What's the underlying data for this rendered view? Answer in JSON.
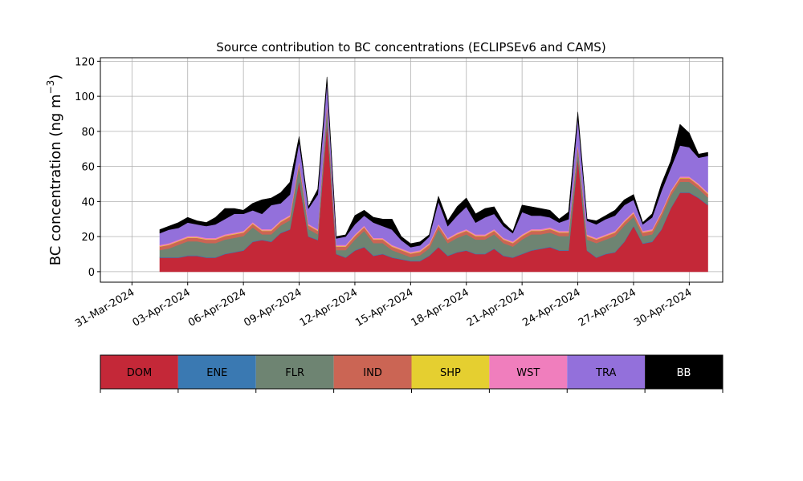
{
  "chart_data": {
    "type": "area",
    "stacked": true,
    "title": "Source contribution to BC concentrations (ECLIPSEv6 and CAMS)",
    "ylabel": "BC concentration (ng m",
    "ylabel_exponent": "−3",
    "ylabel_close": ")",
    "ylim": [
      -6,
      122
    ],
    "yticks": [
      0,
      20,
      40,
      60,
      80,
      100,
      120
    ],
    "xlim": [
      -1.7,
      31.8
    ],
    "xtick_positions": [
      0,
      3,
      6,
      9,
      12,
      15,
      18,
      21,
      24,
      27,
      30
    ],
    "xtick_labels": [
      "31-Mar-2024",
      "03-Apr-2024",
      "06-Apr-2024",
      "09-Apr-2024",
      "12-Apr-2024",
      "15-Apr-2024",
      "18-Apr-2024",
      "21-Apr-2024",
      "24-Apr-2024",
      "27-Apr-2024",
      "30-Apr-2024"
    ],
    "x_units": "days since 31-Mar-2024",
    "grid": true,
    "legend_placement": "bottom",
    "x": [
      1.5,
      2.0,
      2.5,
      3.0,
      3.5,
      4.0,
      4.5,
      5.0,
      5.5,
      6.0,
      6.5,
      7.0,
      7.5,
      8.0,
      8.5,
      9.0,
      9.5,
      10.0,
      10.5,
      11.0,
      11.5,
      12.0,
      12.5,
      13.0,
      13.5,
      14.0,
      14.5,
      15.0,
      15.5,
      16.0,
      16.5,
      17.0,
      17.5,
      18.0,
      18.5,
      19.0,
      19.5,
      20.0,
      20.5,
      21.0,
      21.5,
      22.0,
      22.5,
      23.0,
      23.5,
      24.0,
      24.5,
      25.0,
      25.5,
      26.0,
      26.5,
      27.0,
      27.5,
      28.0,
      28.5,
      29.0,
      29.5,
      30.0,
      30.5,
      31.0
    ],
    "series": [
      {
        "name": "DOM",
        "color": "#c42838",
        "values": [
          8,
          8,
          8,
          9,
          9,
          8,
          8,
          10,
          11,
          12,
          17,
          18,
          17,
          22,
          24,
          52,
          20,
          18,
          85,
          10,
          8,
          12,
          14,
          9,
          10,
          8,
          7,
          6,
          6,
          9,
          14,
          9,
          11,
          12,
          10,
          10,
          13,
          9,
          8,
          10,
          12,
          13,
          14,
          12,
          12,
          65,
          12,
          8,
          10,
          11,
          17,
          26,
          16,
          17,
          24,
          36,
          45,
          45,
          42,
          38
        ]
      },
      {
        "name": "ENE",
        "color": "#3a79b2",
        "values": [
          0.3,
          0.3,
          0.3,
          0.3,
          0.3,
          0.3,
          0.3,
          0.3,
          0.3,
          0.3,
          0.3,
          0.3,
          0.3,
          0.3,
          0.3,
          0.3,
          0.3,
          0.3,
          0.3,
          0.3,
          0.3,
          0.3,
          0.3,
          0.3,
          0.3,
          0.3,
          0.3,
          0.3,
          0.3,
          0.3,
          0.3,
          0.3,
          0.3,
          0.3,
          0.3,
          0.3,
          0.3,
          0.3,
          0.3,
          0.3,
          0.3,
          0.3,
          0.3,
          0.3,
          0.3,
          0.3,
          0.3,
          0.3,
          0.3,
          0.3,
          0.3,
          0.3,
          0.3,
          0.3,
          0.3,
          0.3,
          0.3,
          0.3,
          0.3,
          0.3
        ]
      },
      {
        "name": "FLR",
        "color": "#6e8472",
        "values": [
          4,
          5,
          7,
          8,
          8,
          8,
          8,
          8,
          8,
          8,
          8,
          3,
          4,
          4,
          5,
          8,
          4,
          3,
          8,
          2,
          4,
          6,
          9,
          7,
          6,
          4,
          3,
          2,
          3,
          4,
          10,
          7,
          8,
          9,
          8,
          8,
          8,
          7,
          6,
          8,
          9,
          8,
          8,
          8,
          8,
          5,
          6,
          8,
          8,
          9,
          9,
          5,
          4,
          4,
          7,
          7,
          6,
          6,
          5,
          4
        ]
      },
      {
        "name": "IND",
        "color": "#cb6554",
        "values": [
          2,
          2,
          2,
          2,
          2,
          2,
          2,
          2,
          2,
          2,
          2,
          2,
          2,
          2,
          2,
          2,
          2,
          2,
          2,
          2,
          2,
          2,
          2,
          2,
          2,
          2,
          2,
          2,
          2,
          2,
          2,
          2,
          2,
          2,
          2,
          2,
          2,
          2,
          2,
          2,
          2,
          2,
          2,
          2,
          2,
          2,
          2,
          2,
          2,
          2,
          2,
          2,
          2,
          2,
          2,
          2,
          2,
          2,
          2,
          2
        ]
      },
      {
        "name": "SHP",
        "color": "#e5cf30",
        "values": [
          0.3,
          0.3,
          0.3,
          0.3,
          0.3,
          0.3,
          0.3,
          0.3,
          0.3,
          0.3,
          0.3,
          0.3,
          0.3,
          0.3,
          0.3,
          0.3,
          0.3,
          0.3,
          0.3,
          0.3,
          0.3,
          0.3,
          0.3,
          0.3,
          0.3,
          0.3,
          0.3,
          0.3,
          0.3,
          0.3,
          0.3,
          0.3,
          0.3,
          0.3,
          0.3,
          0.3,
          0.3,
          0.3,
          0.3,
          0.3,
          0.3,
          0.3,
          0.3,
          0.3,
          0.3,
          0.3,
          0.3,
          0.3,
          0.3,
          0.3,
          0.3,
          0.3,
          0.3,
          0.3,
          0.3,
          0.3,
          0.3,
          0.3,
          0.3,
          0.3
        ]
      },
      {
        "name": "WST",
        "color": "#f07ebd",
        "values": [
          0.7,
          0.7,
          0.7,
          0.7,
          0.7,
          0.7,
          0.7,
          0.7,
          0.7,
          0.7,
          0.7,
          0.7,
          0.7,
          0.7,
          0.7,
          0.7,
          0.7,
          0.7,
          0.7,
          0.7,
          0.7,
          0.7,
          0.7,
          0.7,
          0.7,
          0.7,
          0.7,
          0.7,
          0.7,
          0.7,
          0.7,
          0.7,
          0.7,
          0.7,
          0.7,
          0.7,
          0.7,
          0.7,
          0.7,
          0.7,
          0.7,
          0.7,
          0.7,
          0.7,
          0.7,
          0.7,
          0.7,
          0.7,
          0.7,
          0.7,
          0.7,
          0.7,
          0.7,
          0.7,
          0.7,
          0.7,
          0.7,
          0.7,
          0.7,
          0.7
        ]
      },
      {
        "name": "TRA",
        "color": "#9370db",
        "values": [
          6.7,
          7.7,
          6.7,
          7.7,
          6.7,
          6.7,
          7.7,
          8.7,
          10.7,
          9.7,
          6.7,
          8.7,
          13.7,
          9.7,
          11.7,
          10.7,
          8.7,
          19.7,
          11.7,
          3.7,
          4.7,
          5.7,
          5.7,
          8.7,
          6.7,
          8.7,
          4.7,
          2.7,
          2.7,
          3.7,
          12.7,
          6.7,
          9.7,
          12.7,
          6.7,
          9.7,
          8.7,
          6.7,
          4.7,
          12.7,
          7.7,
          7.7,
          5.7,
          4.7,
          6.7,
          14.7,
          7.7,
          7.7,
          8.7,
          8.7,
          8.7,
          6.7,
          3.7,
          6.7,
          11.7,
          12.7,
          17.7,
          16.7,
          14.7,
          20.7
        ]
      },
      {
        "name": "BB",
        "color": "#000000",
        "values": [
          2,
          2,
          3,
          3,
          2,
          2,
          4,
          6,
          3,
          2,
          4,
          8,
          4,
          6,
          7,
          3,
          1,
          3,
          3,
          1,
          1,
          5,
          3,
          3,
          4,
          6,
          2,
          2,
          2,
          1,
          3,
          3,
          5,
          5,
          5,
          5,
          4,
          2,
          1,
          4,
          5,
          4,
          4,
          2,
          4,
          3,
          1,
          2,
          2,
          3,
          3,
          3,
          1,
          2,
          4,
          4,
          12,
          8,
          2,
          2
        ]
      }
    ]
  }
}
